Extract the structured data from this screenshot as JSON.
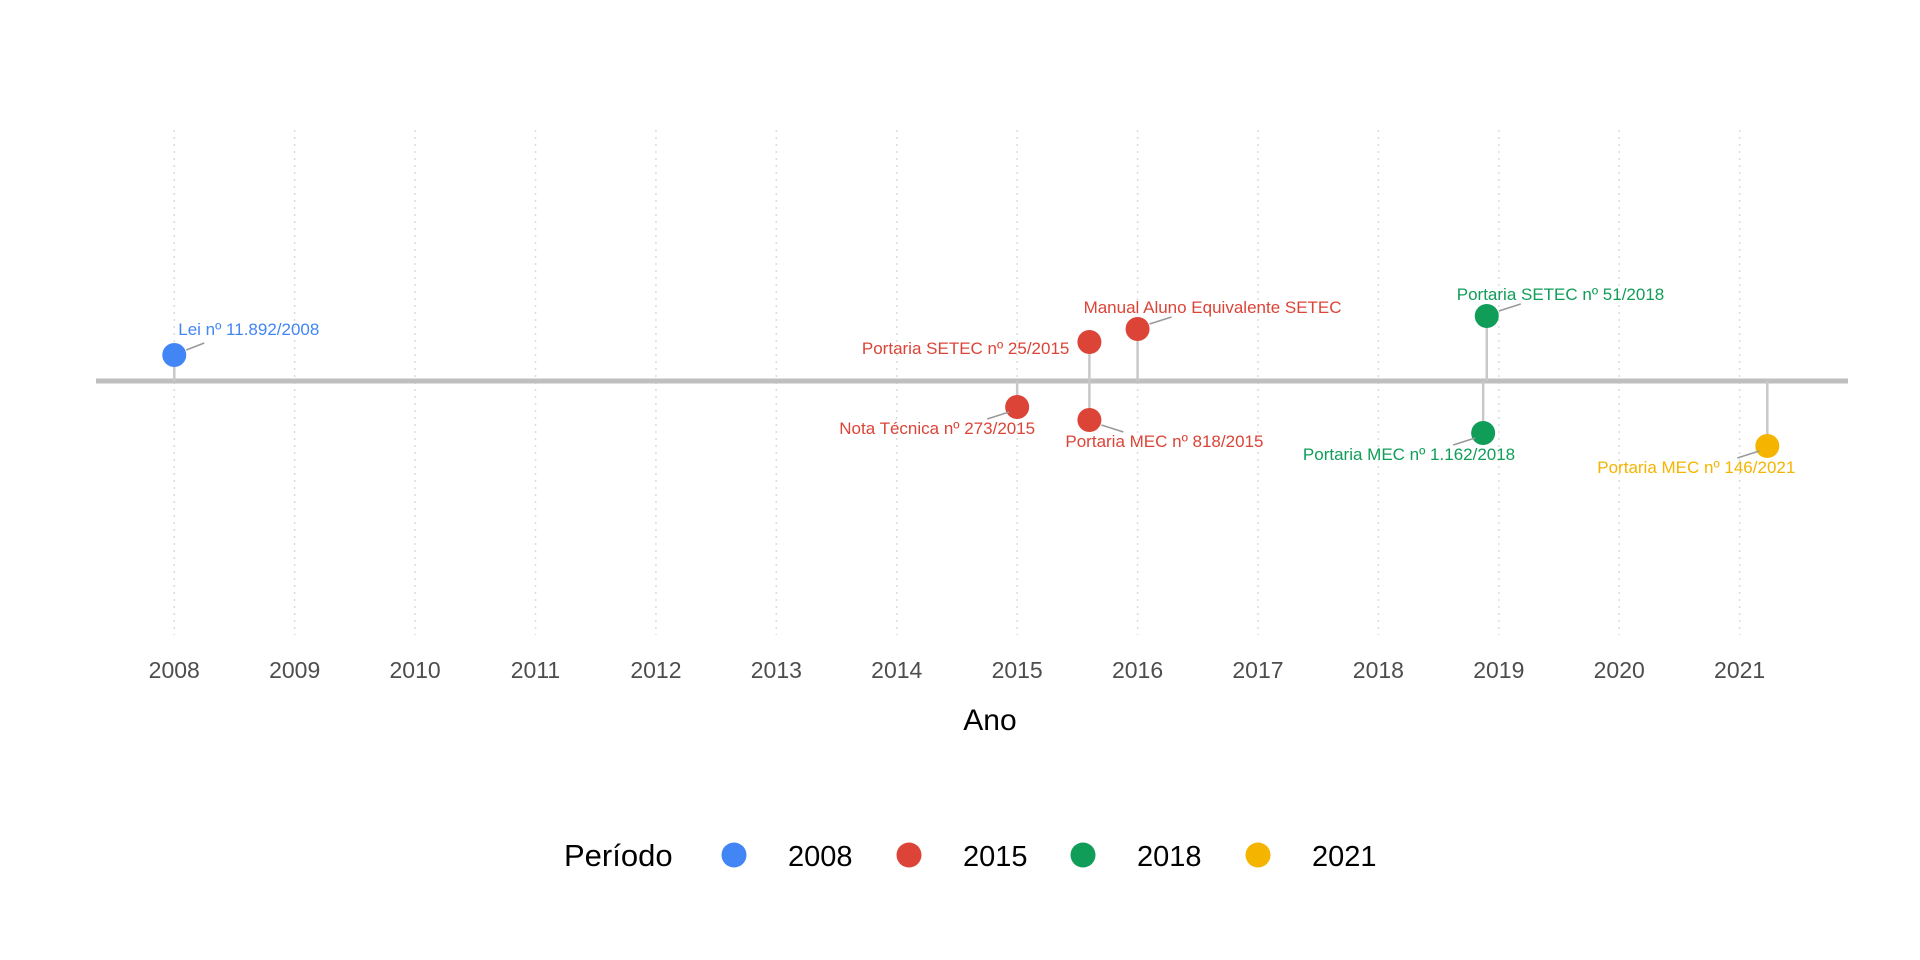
{
  "chart_data": {
    "type": "scatter",
    "title": "",
    "xlabel": "Ano",
    "ylabel": "",
    "xlim": [
      2007.35,
      2021.9
    ],
    "x_ticks": [
      2008,
      2009,
      2010,
      2011,
      2012,
      2013,
      2014,
      2015,
      2016,
      2017,
      2018,
      2019,
      2020,
      2021
    ],
    "grid": "vertical dotted",
    "legend": {
      "title": "Período",
      "position": "bottom",
      "entries": [
        {
          "label": "2008",
          "color": "#4285F4"
        },
        {
          "label": "2015",
          "color": "#DB4437"
        },
        {
          "label": "2018",
          "color": "#0F9D58"
        },
        {
          "label": "2021",
          "color": "#F4B400"
        }
      ]
    },
    "events": [
      {
        "label": "Lei nº 11.892/2008",
        "x": 2008.0,
        "y": 0.2,
        "period": "2008",
        "color": "#4285F4"
      },
      {
        "label": "Nota Técnica nº 273/2015",
        "x": 2015.0,
        "y": -0.2,
        "period": "2015",
        "color": "#DB4437"
      },
      {
        "label": "Portaria SETEC nº 25/2015",
        "x": 2015.6,
        "y": 0.3,
        "period": "2015",
        "color": "#DB4437"
      },
      {
        "label": "Portaria MEC nº 818/2015",
        "x": 2015.6,
        "y": -0.3,
        "period": "2015",
        "color": "#DB4437"
      },
      {
        "label": "Manual Aluno Equivalente SETEC",
        "x": 2016.0,
        "y": 0.4,
        "period": "2015",
        "color": "#DB4437"
      },
      {
        "label": "Portaria SETEC nº 51/2018",
        "x": 2018.9,
        "y": 0.5,
        "period": "2018",
        "color": "#0F9D58"
      },
      {
        "label": "Portaria MEC nº 1.162/2018",
        "x": 2018.87,
        "y": -0.4,
        "period": "2018",
        "color": "#0F9D58"
      },
      {
        "label": "Portaria MEC nº 146/2021",
        "x": 2021.23,
        "y": -0.5,
        "period": "2021",
        "color": "#F4B400"
      }
    ]
  }
}
